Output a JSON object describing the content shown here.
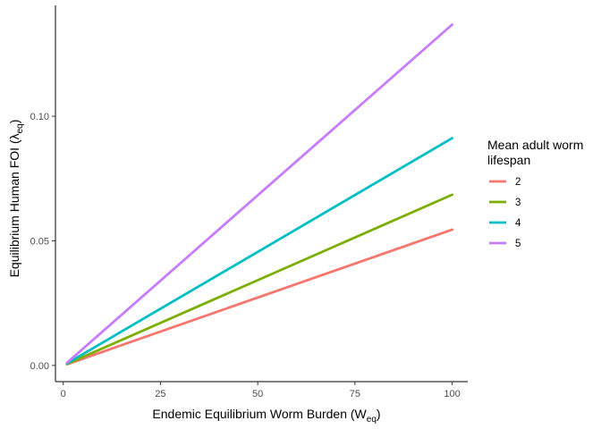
{
  "chart_data": {
    "type": "line",
    "title": "",
    "xlabel": {
      "main": "Endemic Equilibrium Worm Burden (W",
      "sub": "eq",
      "end": ")"
    },
    "ylabel": {
      "main": "Equilibrium Human FOI (λ",
      "sub": "eq",
      "end": ")"
    },
    "xlim": [
      -2,
      104
    ],
    "ylim": [
      -0.0065,
      0.1445
    ],
    "x_ticks": [
      0,
      25,
      50,
      75,
      100
    ],
    "x_tick_labels": [
      "0",
      "25",
      "50",
      "75",
      "100"
    ],
    "y_ticks": [
      0,
      0.05,
      0.1
    ],
    "y_tick_labels": [
      "0.00",
      "0.05",
      "0.10"
    ],
    "grid": false,
    "legend": {
      "title_lines": [
        "Mean adult worm",
        "lifespan"
      ],
      "placement": "right"
    },
    "series": [
      {
        "name": "2",
        "color": "#F8766D",
        "x": [
          1,
          100
        ],
        "y": [
          0.0005,
          0.0545
        ]
      },
      {
        "name": "3",
        "color": "#7CAE00",
        "x": [
          1,
          100
        ],
        "y": [
          0.0006,
          0.0685
        ]
      },
      {
        "name": "4",
        "color": "#00BFC4",
        "x": [
          1,
          100
        ],
        "y": [
          0.0008,
          0.0912
        ]
      },
      {
        "name": "5",
        "color": "#C77CFF",
        "x": [
          1,
          100
        ],
        "y": [
          0.0011,
          0.1368
        ]
      }
    ]
  }
}
